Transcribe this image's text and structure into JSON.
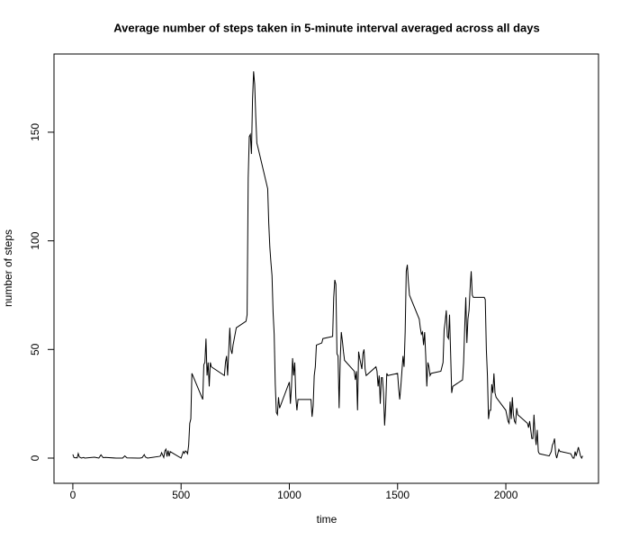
{
  "chart_data": {
    "type": "line",
    "title": "Average number of steps taken in 5-minute interval averaged across all days",
    "x_label": "time",
    "y_label": "number of steps",
    "color": "#000000",
    "xlim": [
      -87,
      2428
    ],
    "ylim": [
      -11.6,
      186
    ],
    "xticks": [
      0,
      500,
      1000,
      1500,
      2000
    ],
    "yticks": [
      0,
      50,
      100,
      150
    ],
    "x": [
      0,
      5,
      10,
      15,
      20,
      25,
      30,
      40,
      50,
      55,
      100,
      110,
      120,
      130,
      140,
      150,
      200,
      230,
      240,
      250,
      300,
      310,
      320,
      330,
      335,
      345,
      400,
      405,
      410,
      420,
      425,
      430,
      435,
      440,
      445,
      450,
      500,
      505,
      510,
      515,
      520,
      525,
      530,
      535,
      540,
      545,
      550,
      600,
      605,
      610,
      615,
      620,
      625,
      630,
      635,
      640,
      700,
      705,
      710,
      715,
      725,
      730,
      735,
      740,
      755,
      800,
      805,
      810,
      815,
      820,
      825,
      830,
      835,
      840,
      845,
      850,
      855,
      900,
      905,
      910,
      915,
      920,
      925,
      930,
      935,
      940,
      945,
      950,
      955,
      1000,
      1005,
      1010,
      1015,
      1020,
      1025,
      1030,
      1035,
      1040,
      1100,
      1105,
      1110,
      1115,
      1120,
      1125,
      1150,
      1155,
      1200,
      1205,
      1210,
      1215,
      1220,
      1225,
      1230,
      1235,
      1240,
      1245,
      1250,
      1255,
      1300,
      1305,
      1310,
      1315,
      1320,
      1325,
      1335,
      1340,
      1345,
      1350,
      1355,
      1400,
      1405,
      1410,
      1415,
      1420,
      1425,
      1430,
      1435,
      1440,
      1445,
      1450,
      1455,
      1500,
      1505,
      1510,
      1515,
      1520,
      1525,
      1530,
      1535,
      1540,
      1545,
      1550,
      1555,
      1600,
      1605,
      1610,
      1615,
      1620,
      1625,
      1630,
      1635,
      1640,
      1645,
      1650,
      1655,
      1700,
      1710,
      1715,
      1720,
      1725,
      1730,
      1735,
      1740,
      1745,
      1750,
      1755,
      1800,
      1805,
      1810,
      1815,
      1820,
      1825,
      1830,
      1835,
      1840,
      1845,
      1850,
      1855,
      1900,
      1905,
      1910,
      1915,
      1920,
      1925,
      1930,
      1935,
      1940,
      1945,
      1950,
      1955,
      2000,
      2010,
      2015,
      2020,
      2025,
      2030,
      2035,
      2040,
      2045,
      2050,
      2055,
      2100,
      2105,
      2110,
      2115,
      2120,
      2125,
      2130,
      2135,
      2140,
      2145,
      2150,
      2155,
      2200,
      2205,
      2210,
      2215,
      2220,
      2225,
      2230,
      2235,
      2240,
      2245,
      2250,
      2255,
      2300,
      2305,
      2310,
      2315,
      2320,
      2325,
      2330,
      2335,
      2340,
      2345,
      2350,
      2355
    ],
    "values": [
      1.7,
      0.3,
      0.1,
      0.2,
      0.1,
      2.1,
      0.5,
      0,
      0.3,
      0,
      0.4,
      0.2,
      0,
      1.5,
      0.2,
      0.3,
      0,
      0,
      1,
      0.1,
      0,
      0,
      0.2,
      1.6,
      0.5,
      0,
      0.8,
      1,
      2.5,
      0.3,
      3.3,
      4.1,
      0.7,
      3.5,
      0.8,
      3,
      0,
      1.5,
      3,
      2.2,
      3.3,
      2.9,
      2,
      6,
      16,
      18,
      39,
      27,
      43,
      44,
      55,
      38,
      44,
      33,
      44,
      42,
      38,
      44,
      47,
      38,
      60,
      50,
      48,
      52,
      60,
      63,
      66,
      129,
      148,
      149,
      140,
      165,
      178,
      172,
      157,
      145,
      143,
      124,
      108,
      97,
      90,
      84,
      67,
      57,
      34,
      21,
      20,
      28,
      23,
      35,
      25,
      33,
      46,
      38,
      44,
      28,
      22,
      27,
      27,
      19,
      24,
      38,
      42,
      52,
      53,
      55,
      56,
      74,
      82,
      80,
      48,
      47,
      23,
      45,
      58,
      54,
      49,
      45,
      40,
      36,
      40,
      22,
      49,
      46,
      41,
      48,
      50,
      41,
      38,
      42,
      40,
      33,
      38,
      25,
      37,
      37,
      30,
      15,
      24,
      39,
      38,
      39,
      32,
      27,
      33,
      40,
      47,
      42,
      58,
      86,
      89,
      81,
      75,
      64,
      60,
      57,
      58,
      52,
      58,
      47,
      33,
      44,
      42,
      38,
      39,
      40,
      44,
      59,
      63,
      68,
      56,
      55,
      66,
      48,
      30,
      33,
      36,
      44,
      60,
      74,
      53,
      64,
      68,
      78,
      86,
      75,
      74,
      74,
      74,
      73,
      50,
      38,
      18,
      22,
      22,
      34,
      30,
      39,
      30,
      28,
      22,
      17,
      16,
      26,
      18,
      28,
      20,
      17,
      16,
      23,
      20,
      16,
      14,
      17,
      13,
      9,
      9,
      20,
      11,
      6,
      13,
      3,
      2,
      1,
      2,
      3,
      6,
      7,
      9,
      2,
      0,
      2,
      4,
      3,
      3,
      2,
      1,
      0,
      0,
      3,
      1,
      3,
      5,
      3,
      1,
      0,
      1
    ]
  }
}
